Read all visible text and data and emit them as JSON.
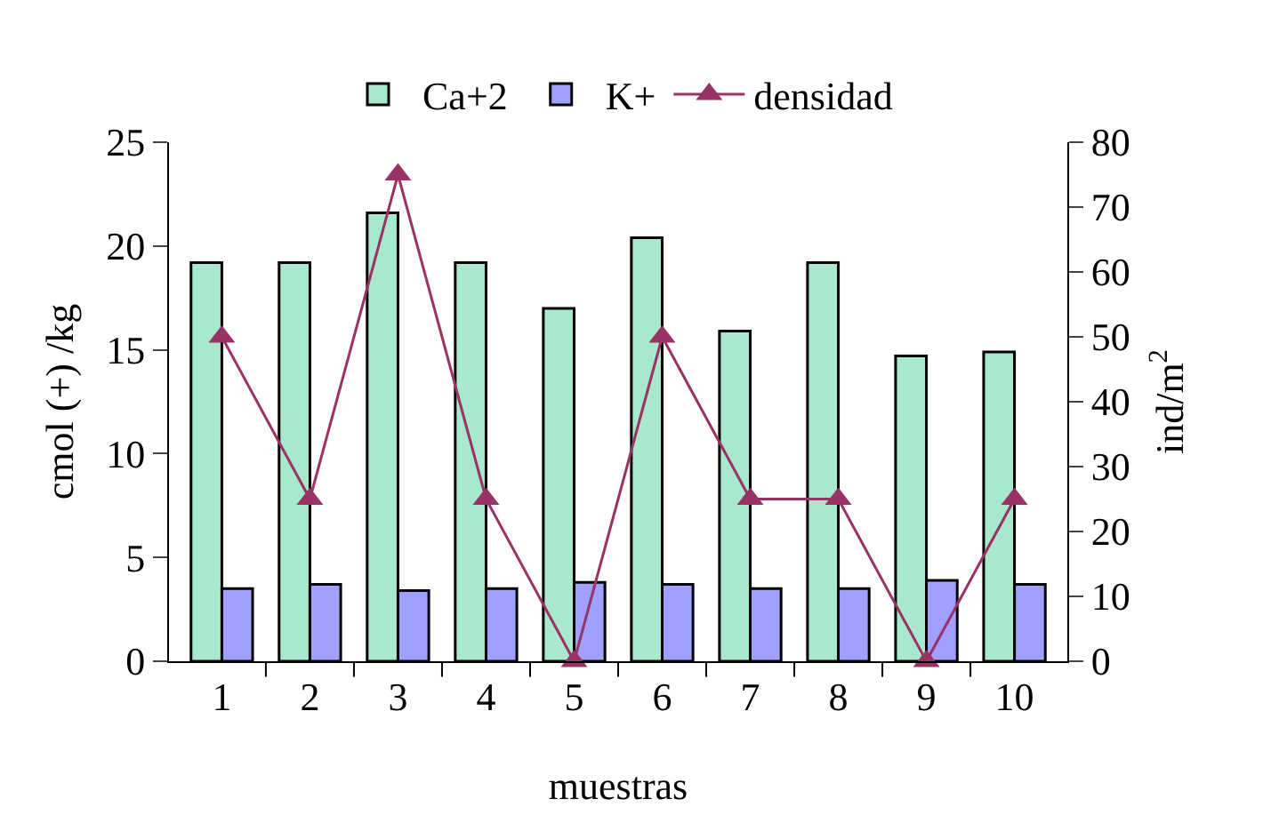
{
  "chart_data": {
    "type": "bar",
    "xlabel": "muestras",
    "ylabel": "cmol (+) /kg",
    "y2label": "ind/m$^{2}$",
    "categories": [
      "1",
      "2",
      "3",
      "4",
      "5",
      "6",
      "7",
      "8",
      "9",
      "10"
    ],
    "series": [
      {
        "name": "Ca+2",
        "color": "#a8e8cc",
        "values": [
          19.2,
          19.2,
          21.6,
          19.2,
          17.0,
          20.4,
          15.9,
          19.2,
          14.7,
          14.9
        ]
      },
      {
        "name": "K+",
        "color": "#a0a0ff",
        "values": [
          3.5,
          3.7,
          3.4,
          3.5,
          3.8,
          3.7,
          3.5,
          3.5,
          3.9,
          3.7
        ]
      },
      {
        "name": "densidad",
        "type": "line",
        "axis": "y2",
        "color": "#993366",
        "marker": "triangle",
        "values": [
          50,
          25,
          75,
          25,
          0,
          50,
          25,
          25,
          0,
          25
        ]
      }
    ],
    "ylim": [
      0,
      25
    ],
    "yticks": [
      0,
      5,
      10,
      15,
      20,
      25
    ],
    "y2lim": [
      0,
      80
    ],
    "y2ticks": [
      0,
      10,
      20,
      30,
      40,
      50,
      60,
      70,
      80
    ],
    "grid": false,
    "legend": "top"
  }
}
